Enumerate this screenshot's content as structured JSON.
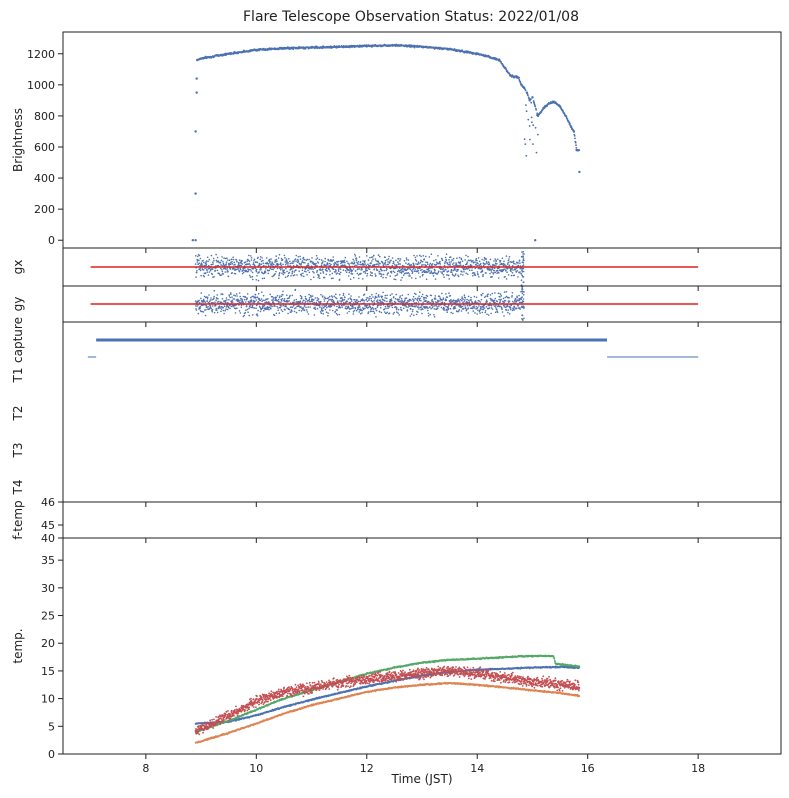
{
  "title": "Flare Telescope Observation Status: 2022/01/08",
  "colors": {
    "blue": "#4c72b0",
    "red": "#dd2222",
    "green": "#55a868",
    "orange": "#dd8452",
    "brick": "#c44e52"
  },
  "chart_data": [
    {
      "name": "brightness",
      "type": "scatter",
      "ylabel": "Brightness",
      "xlim": [
        6.5,
        19.5
      ],
      "ylim": [
        -50,
        1340
      ],
      "yticks": [
        0,
        200,
        400,
        600,
        800,
        1000,
        1200
      ],
      "points": [
        [
          8.85,
          0
        ],
        [
          8.9,
          0
        ],
        [
          8.9,
          300
        ],
        [
          8.9,
          700
        ],
        [
          8.92,
          950
        ],
        [
          8.92,
          1040
        ],
        [
          8.93,
          1160
        ],
        [
          9.0,
          1170
        ],
        [
          9.5,
          1200
        ],
        [
          10.0,
          1225
        ],
        [
          10.5,
          1235
        ],
        [
          11.0,
          1240
        ],
        [
          11.5,
          1245
        ],
        [
          12.0,
          1250
        ],
        [
          12.5,
          1255
        ],
        [
          13.0,
          1245
        ],
        [
          13.5,
          1230
        ],
        [
          14.0,
          1200
        ],
        [
          14.4,
          1160
        ],
        [
          14.5,
          1110
        ],
        [
          14.6,
          1060
        ],
        [
          14.75,
          1045
        ],
        [
          14.8,
          1000
        ],
        [
          14.85,
          980
        ],
        [
          14.9,
          950
        ],
        [
          14.95,
          900
        ],
        [
          15.0,
          920
        ],
        [
          15.05,
          0
        ],
        [
          15.1,
          800
        ],
        [
          15.2,
          850
        ],
        [
          15.3,
          880
        ],
        [
          15.4,
          890
        ],
        [
          15.5,
          860
        ],
        [
          15.6,
          800
        ],
        [
          15.7,
          730
        ],
        [
          15.75,
          700
        ],
        [
          15.8,
          580
        ],
        [
          15.85,
          440
        ]
      ]
    },
    {
      "name": "gx",
      "type": "scatter",
      "ylabel": "gx",
      "xlim": [
        6.5,
        19.5
      ],
      "reference_line": {
        "x": [
          7.0,
          18.0
        ],
        "y": 0
      },
      "points_x_range": [
        8.9,
        14.8
      ],
      "ylim": [
        -1,
        1
      ]
    },
    {
      "name": "gy",
      "type": "scatter",
      "ylabel": "gy",
      "xlim": [
        6.5,
        19.5
      ],
      "reference_line": {
        "x": [
          7.0,
          18.0
        ],
        "y": 0
      },
      "points_x_range": [
        8.9,
        14.8
      ],
      "ylim": [
        -1,
        1
      ]
    },
    {
      "name": "status",
      "type": "line",
      "ylabels": [
        "capture",
        "T1",
        "T2",
        "T3",
        "T4"
      ],
      "xlim": [
        6.5,
        19.5
      ],
      "capture_segment": [
        7.1,
        16.35
      ],
      "t1_segments": [
        [
          6.95,
          7.1
        ],
        [
          16.35,
          18.0
        ]
      ]
    },
    {
      "name": "f-temp",
      "type": "line",
      "ylabel": "f-temp",
      "xlim": [
        6.5,
        19.5
      ],
      "ylim": [
        40,
        46
      ],
      "yticks": [
        40,
        45,
        46
      ]
    },
    {
      "name": "temperature",
      "type": "scatter",
      "ylabel": "temp.",
      "xlabel": "Time (JST)",
      "xlim": [
        6.5,
        19.5
      ],
      "ylim": [
        0,
        39
      ],
      "yticks": [
        0,
        5,
        10,
        15,
        20,
        25,
        30,
        35
      ],
      "xticks": [
        8,
        10,
        12,
        14,
        16,
        18
      ],
      "series": [
        {
          "color": "blue",
          "x": [
            8.9,
            9.5,
            10.0,
            10.5,
            11.0,
            11.5,
            12.0,
            12.5,
            13.0,
            13.5,
            14.0,
            14.5,
            15.0,
            15.5,
            15.85
          ],
          "values": [
            5.5,
            5.8,
            7.0,
            8.5,
            9.8,
            11.0,
            12.2,
            13.2,
            14.2,
            14.8,
            15.2,
            15.4,
            15.6,
            15.7,
            15.6
          ]
        },
        {
          "color": "green",
          "x": [
            8.9,
            9.5,
            10.0,
            10.5,
            11.0,
            11.5,
            12.0,
            12.5,
            13.0,
            13.5,
            14.0,
            14.5,
            15.0,
            15.38,
            15.42,
            15.85
          ],
          "values": [
            4.0,
            6.0,
            8.0,
            10.0,
            11.5,
            13.0,
            14.5,
            15.6,
            16.5,
            17.0,
            17.2,
            17.5,
            17.7,
            17.7,
            16.3,
            15.8
          ]
        },
        {
          "color": "orange",
          "x": [
            8.9,
            9.5,
            10.0,
            10.5,
            11.0,
            11.5,
            12.0,
            12.5,
            13.0,
            13.5,
            14.0,
            14.5,
            15.0,
            15.5,
            15.85
          ],
          "values": [
            2.0,
            3.8,
            5.5,
            7.3,
            8.8,
            10.0,
            11.2,
            12.0,
            12.5,
            12.8,
            12.5,
            12.0,
            11.5,
            11.0,
            10.5
          ]
        },
        {
          "color": "brick",
          "x": [
            8.9,
            9.5,
            10.0,
            10.5,
            11.0,
            11.5,
            12.0,
            12.5,
            13.0,
            13.5,
            14.0,
            14.5,
            15.0,
            15.5,
            15.85
          ],
          "values": [
            4.0,
            7.0,
            9.5,
            11.0,
            12.0,
            12.8,
            13.5,
            14.0,
            14.6,
            15.0,
            14.5,
            13.8,
            13.0,
            12.5,
            12.0
          ]
        }
      ]
    }
  ]
}
